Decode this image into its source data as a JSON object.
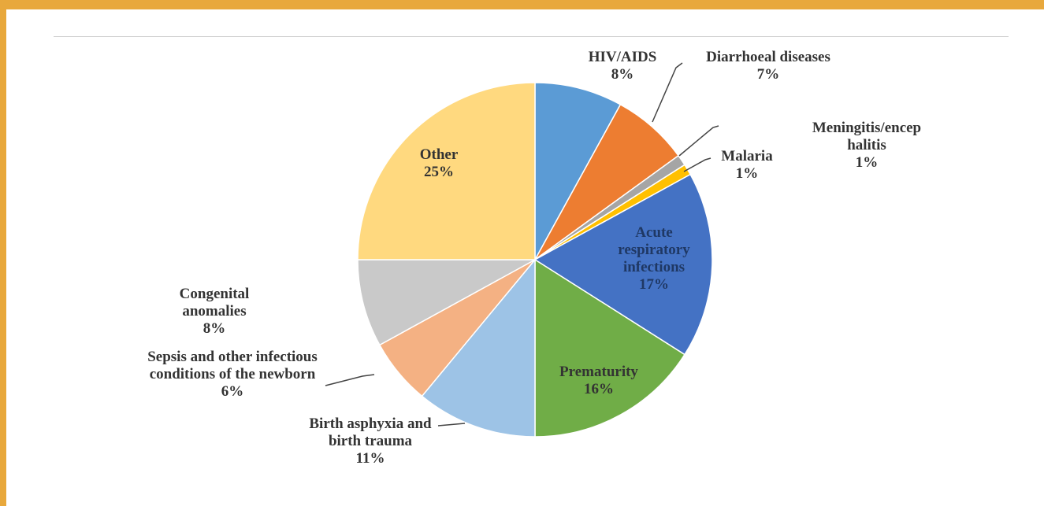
{
  "chart_data": {
    "type": "pie",
    "categories": [
      "HIV/AIDS",
      "Diarrhoeal diseases",
      "Meningitis/encephalitis",
      "Malaria",
      "Acute respiratory infections",
      "Prematurity",
      "Birth asphyxia and birth trauma",
      "Sepsis and other infectious conditions of the newborn",
      "Congenital anomalies",
      "Other"
    ],
    "values": [
      8,
      7,
      1,
      1,
      17,
      16,
      11,
      6,
      8,
      25
    ],
    "value_labels": [
      "8%",
      "7%",
      "1%",
      "1%",
      "17%",
      "16%",
      "11%",
      "6%",
      "8%",
      "25%"
    ],
    "colors": [
      "#5b9bd5",
      "#ed7d31",
      "#a5a5a5",
      "#ffc000",
      "#4472c4",
      "#70ad47",
      "#9dc3e6",
      "#f4b183",
      "#c9c9c9",
      "#ffd97f"
    ]
  }
}
